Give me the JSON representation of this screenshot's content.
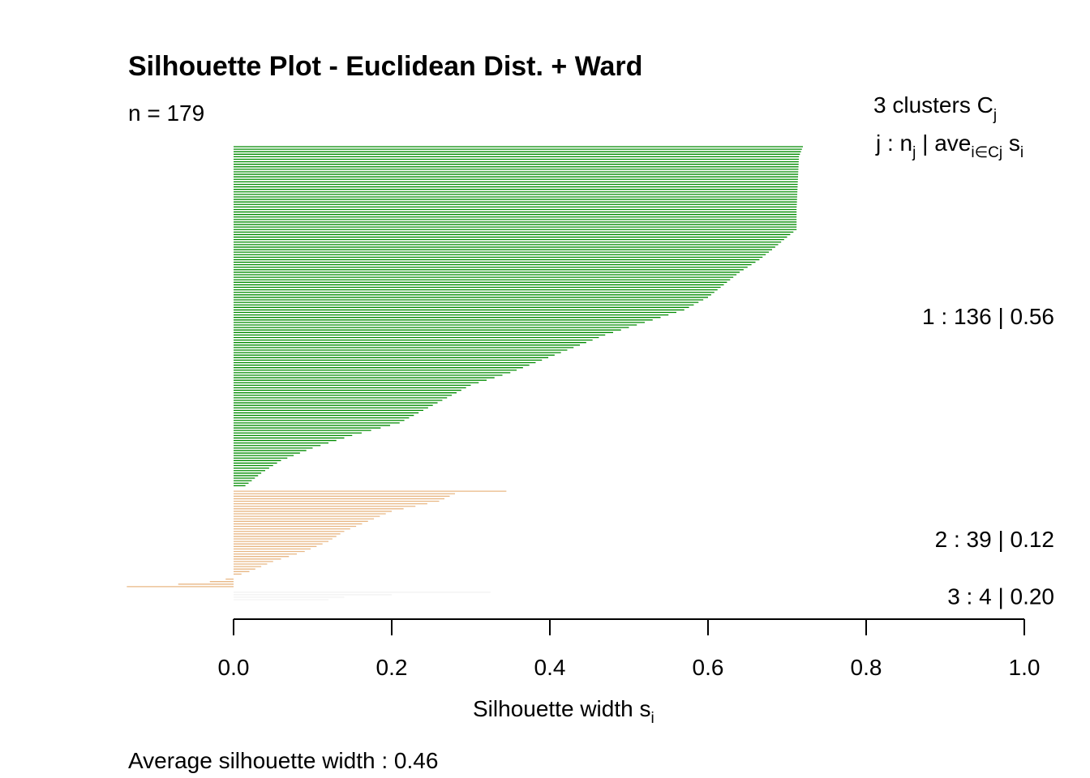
{
  "chart_data": {
    "type": "bar",
    "orientation": "horizontal",
    "title": "Silhouette Plot - Euclidean Dist. + Ward",
    "n_label": "n = 179",
    "header": {
      "clusters_prefix": "3  clusters  C",
      "clusters_sub": "j",
      "legend_j": "j :  n",
      "legend_nsub": "j",
      "legend_mid": " | ave",
      "legend_avesub": "i∈Cj",
      "legend_s": "  s",
      "legend_ssub": "i"
    },
    "xlabel": "Silhouette width s",
    "xlabel_sub": "i",
    "xlim": [
      0.0,
      1.0
    ],
    "xticks": [
      "0.0",
      "0.2",
      "0.4",
      "0.6",
      "0.8",
      "1.0"
    ],
    "footer": "Average silhouette width :  0.46",
    "clusters": [
      {
        "label": "1 :   136  |  0.56",
        "n": 136,
        "average": 0.56,
        "color": "#008B00",
        "profile": [
          [
            0,
            0.72
          ],
          [
            4,
            0.715
          ],
          [
            25,
            0.712
          ],
          [
            33,
            0.712
          ],
          [
            36,
            0.7
          ],
          [
            40,
            0.685
          ],
          [
            45,
            0.665
          ],
          [
            50,
            0.64
          ],
          [
            55,
            0.62
          ],
          [
            60,
            0.6
          ],
          [
            65,
            0.57
          ],
          [
            70,
            0.52
          ],
          [
            75,
            0.47
          ],
          [
            80,
            0.43
          ],
          [
            85,
            0.39
          ],
          [
            90,
            0.35
          ],
          [
            95,
            0.3
          ],
          [
            100,
            0.27
          ],
          [
            105,
            0.24
          ],
          [
            110,
            0.21
          ],
          [
            115,
            0.15
          ],
          [
            120,
            0.1
          ],
          [
            125,
            0.06
          ],
          [
            130,
            0.035
          ],
          [
            135,
            0.015
          ]
        ]
      },
      {
        "label": "2 :   39  |  0.12",
        "n": 39,
        "average": 0.12,
        "color": "#E8B784",
        "profile": [
          [
            0,
            0.345
          ],
          [
            1,
            0.28
          ],
          [
            4,
            0.26
          ],
          [
            8,
            0.2
          ],
          [
            12,
            0.17
          ],
          [
            16,
            0.14
          ],
          [
            20,
            0.12
          ],
          [
            24,
            0.09
          ],
          [
            28,
            0.05
          ],
          [
            32,
            0.02
          ],
          [
            34,
            0.0
          ],
          [
            35,
            -0.01
          ],
          [
            36,
            -0.03
          ],
          [
            37,
            -0.07
          ],
          [
            38,
            -0.135
          ]
        ]
      },
      {
        "label": "3 :   4  |  0.20",
        "n": 4,
        "average": 0.2,
        "color": "#F2F2F2",
        "profile": [
          [
            0,
            0.325
          ],
          [
            1,
            0.2
          ],
          [
            2,
            0.14
          ],
          [
            3,
            0.12
          ]
        ]
      }
    ]
  }
}
